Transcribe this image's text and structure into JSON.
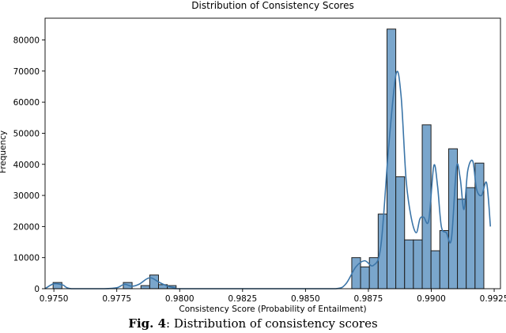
{
  "chart_data": {
    "type": "bar",
    "title": "Distribution of Consistency Scores",
    "xlabel": "Consistency Score (Probability of Entailment)",
    "ylabel": "Frequency",
    "xlim": [
      0.97465,
      0.99275
    ],
    "ylim": [
      0,
      87000
    ],
    "xticks": [
      0.975,
      0.9775,
      0.98,
      0.9825,
      0.985,
      0.9875,
      0.99,
      0.9925
    ],
    "xtick_labels": [
      "0.9750",
      "0.9775",
      "0.9800",
      "0.9825",
      "0.9850",
      "0.9875",
      "0.9900",
      "0.9925"
    ],
    "yticks": [
      0,
      10000,
      20000,
      30000,
      40000,
      50000,
      60000,
      70000,
      80000
    ],
    "ytick_labels": [
      "0",
      "10000",
      "20000",
      "30000",
      "40000",
      "50000",
      "60000",
      "70000",
      "80000"
    ],
    "grid": false,
    "bar_color": "#7aa6cc",
    "bar_edge_color": "#1f1f1f",
    "kde_color": "#3b75a8",
    "bin_width": 0.000349,
    "bins_start": [
      0.97497,
      0.97776,
      0.97846,
      0.97881,
      0.97916,
      0.97951,
      0.98684,
      0.98719,
      0.98754,
      0.98789,
      0.98824,
      0.98859,
      0.98894,
      0.98929,
      0.98964,
      0.98999,
      0.99034,
      0.99069,
      0.99104,
      0.99139,
      0.99174,
      0.99209
    ],
    "counts": [
      2000,
      2000,
      1000,
      4400,
      1300,
      1000,
      10000,
      7000,
      10000,
      24000,
      83500,
      36000,
      15700,
      15700,
      52700,
      12200,
      18700,
      45000,
      28800,
      32500,
      40400,
      0
    ],
    "kde": {
      "x": [
        0.97465,
        0.975,
        0.97535,
        0.9757,
        0.977,
        0.9775,
        0.9778,
        0.9781,
        0.9784,
        0.9787,
        0.9789,
        0.9792,
        0.9795,
        0.9798,
        0.9802,
        0.985,
        0.9862,
        0.9866,
        0.987,
        0.98735,
        0.9877,
        0.988,
        0.9883,
        0.9886,
        0.9888,
        0.989,
        0.9892,
        0.9894,
        0.98955,
        0.9897,
        0.9899,
        0.9901,
        0.99025,
        0.9904,
        0.9906,
        0.9908,
        0.991,
        0.99115,
        0.9913,
        0.99145,
        0.99165,
        0.9918,
        0.992,
        0.9922,
        0.99235
      ],
      "y": [
        0,
        1600,
        1200,
        0,
        0,
        300,
        1400,
        800,
        1500,
        3200,
        3400,
        2000,
        900,
        300,
        0,
        0,
        0,
        1500,
        7000,
        9000,
        7500,
        14000,
        45000,
        69000,
        62000,
        35000,
        23000,
        18000,
        22500,
        23000,
        22000,
        39500,
        33000,
        20000,
        18000,
        16000,
        39000,
        35500,
        25500,
        38000,
        41000,
        32000,
        30000,
        34000,
        20000
      ]
    }
  },
  "caption": {
    "label": "Fig. 4",
    "text": ": Distribution of consistency scores"
  }
}
